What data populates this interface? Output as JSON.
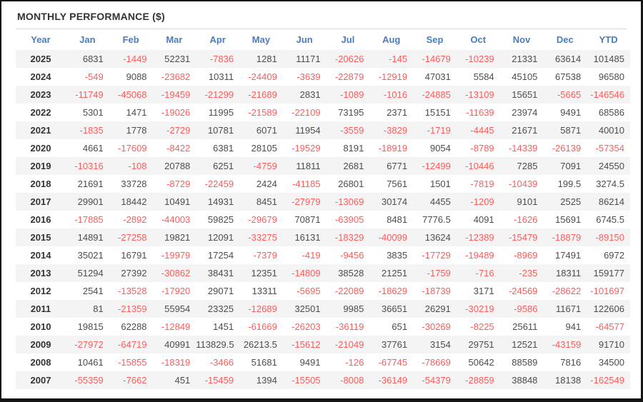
{
  "window": {
    "title": "MONTHLY PERFORMANCE ($)"
  },
  "colors": {
    "header_text": "#4a7dbf",
    "negative_value": "#ff5b5b",
    "positive_value": "#4d4d4d",
    "row_stripe": "#f4f4f4",
    "year_text": "#333333"
  },
  "table": {
    "columns": [
      "Year",
      "Jan",
      "Feb",
      "Mar",
      "Apr",
      "May",
      "Jun",
      "Jul",
      "Aug",
      "Sep",
      "Oct",
      "Nov",
      "Dec",
      "YTD"
    ],
    "rows": [
      [
        "2025",
        "6831",
        "-1449",
        "52231",
        "-7836",
        "1281",
        "11171",
        "-20626",
        "-145",
        "-14679",
        "-10239",
        "21331",
        "63614",
        "101485"
      ],
      [
        "2024",
        "-549",
        "9088",
        "-23682",
        "10311",
        "-24409",
        "-3639",
        "-22879",
        "-12919",
        "47031",
        "5584",
        "45105",
        "67538",
        "96580"
      ],
      [
        "2023",
        "-11749",
        "-45068",
        "-19459",
        "-21299",
        "-21689",
        "2831",
        "-1089",
        "-1016",
        "-24885",
        "-13109",
        "15651",
        "-5665",
        "-146546"
      ],
      [
        "2022",
        "5301",
        "1471",
        "-19026",
        "11995",
        "-21589",
        "-22109",
        "73195",
        "2371",
        "15151",
        "-11639",
        "23974",
        "9491",
        "68586"
      ],
      [
        "2021",
        "-1835",
        "1778",
        "-2729",
        "10781",
        "6071",
        "11954",
        "-3559",
        "-3829",
        "-1719",
        "-4445",
        "21671",
        "5871",
        "40010"
      ],
      [
        "2020",
        "4661",
        "-17609",
        "-8422",
        "6381",
        "28105",
        "-19529",
        "8191",
        "-18919",
        "9054",
        "-8789",
        "-14339",
        "-26139",
        "-57354"
      ],
      [
        "2019",
        "-10316",
        "-108",
        "20788",
        "6251",
        "-4759",
        "11811",
        "2681",
        "6771",
        "-12499",
        "-10446",
        "7285",
        "7091",
        "24550"
      ],
      [
        "2018",
        "21691",
        "33728",
        "-8729",
        "-22459",
        "2424",
        "-41185",
        "26801",
        "7561",
        "1501",
        "-7819",
        "-10439",
        "199.5",
        "3274.5"
      ],
      [
        "2017",
        "29901",
        "18442",
        "10491",
        "14931",
        "8451",
        "-27979",
        "-13069",
        "30174",
        "4455",
        "-1209",
        "9101",
        "2525",
        "86214"
      ],
      [
        "2016",
        "-17885",
        "-2892",
        "-44003",
        "59825",
        "-29679",
        "70871",
        "-63905",
        "8481",
        "7776.5",
        "4091",
        "-1626",
        "15691",
        "6745.5"
      ],
      [
        "2015",
        "14891",
        "-27258",
        "19821",
        "12091",
        "-33275",
        "16131",
        "-18329",
        "-40099",
        "13624",
        "-12389",
        "-15479",
        "-18879",
        "-89150"
      ],
      [
        "2014",
        "35021",
        "16791",
        "-19979",
        "17254",
        "-7379",
        "-419",
        "-9456",
        "3835",
        "-17729",
        "-19489",
        "-8969",
        "17491",
        "6972"
      ],
      [
        "2013",
        "51294",
        "27392",
        "-30862",
        "38431",
        "12351",
        "-14809",
        "38528",
        "21251",
        "-1759",
        "-716",
        "-235",
        "18311",
        "159177"
      ],
      [
        "2012",
        "2541",
        "-13528",
        "-17920",
        "29071",
        "13311",
        "-5695",
        "-22089",
        "-18629",
        "-18739",
        "3171",
        "-24569",
        "-28622",
        "-101697"
      ],
      [
        "2011",
        "81",
        "-21359",
        "55954",
        "23325",
        "-12689",
        "32501",
        "9985",
        "36651",
        "26291",
        "-30219",
        "-9586",
        "11671",
        "122606"
      ],
      [
        "2010",
        "19815",
        "62288",
        "-12849",
        "1451",
        "-61669",
        "-26203",
        "-36119",
        "651",
        "-30269",
        "-8225",
        "25611",
        "941",
        "-64577"
      ],
      [
        "2009",
        "-27972",
        "-64719",
        "40991",
        "113829.5",
        "26213.5",
        "-15612",
        "-21049",
        "37761",
        "3154",
        "29751",
        "12521",
        "-43159",
        "91710"
      ],
      [
        "2008",
        "10461",
        "-15855",
        "-18319",
        "-3466",
        "51681",
        "9491",
        "-126",
        "-67745",
        "-78669",
        "50642",
        "88589",
        "7816",
        "34500"
      ],
      [
        "2007",
        "-55359",
        "-7662",
        "451",
        "-15459",
        "1394",
        "-15505",
        "-8008",
        "-36149",
        "-54379",
        "-28859",
        "38848",
        "18138",
        "-162549"
      ]
    ]
  }
}
